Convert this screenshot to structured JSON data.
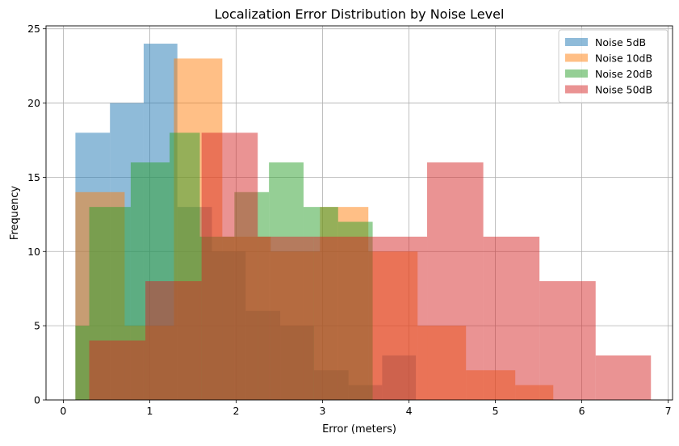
{
  "chart_data": {
    "type": "histogram",
    "title": "Localization Error Distribution by Noise Level",
    "xlabel": "Error (meters)",
    "ylabel": "Frequency",
    "xlim": [
      -0.2,
      7.05
    ],
    "ylim": [
      0,
      25.2
    ],
    "xticks": [
      0,
      1,
      2,
      3,
      4,
      5,
      6,
      7
    ],
    "yticks": [
      0,
      5,
      10,
      15,
      20,
      25
    ],
    "grid": true,
    "legend_position": "top-right",
    "alpha": 0.5,
    "series": [
      {
        "name": "Noise 5dB",
        "color": "#1f77b4",
        "bin_edges": [
          0.14,
          0.54,
          0.93,
          1.32,
          1.72,
          2.11,
          2.51,
          2.9,
          3.3,
          3.69,
          4.08
        ],
        "counts": [
          18,
          20,
          24,
          13,
          10,
          6,
          5,
          2,
          1,
          3
        ]
      },
      {
        "name": "Noise 10dB",
        "color": "#ff7f0e",
        "bin_edges": [
          0.14,
          0.71,
          1.28,
          1.84,
          2.4,
          2.97,
          3.53,
          4.1,
          4.66,
          5.23,
          5.67
        ],
        "counts": [
          14,
          5,
          23,
          11,
          10,
          13,
          10,
          5,
          2,
          1
        ]
      },
      {
        "name": "Noise 20dB",
        "color": "#2ca02c",
        "bin_edges": [
          0.14,
          0.3,
          0.78,
          1.23,
          1.58,
          1.98,
          2.38,
          2.78,
          3.18,
          3.58,
          4.08
        ],
        "counts": [
          5,
          13,
          16,
          18,
          11,
          14,
          16,
          13,
          12,
          0
        ]
      },
      {
        "name": "Noise 50dB",
        "color": "#d62728",
        "bin_edges": [
          0.3,
          0.95,
          1.6,
          2.25,
          2.9,
          3.56,
          4.21,
          4.86,
          5.51,
          6.16,
          6.8
        ],
        "counts": [
          4,
          8,
          18,
          11,
          11,
          11,
          16,
          11,
          8,
          3
        ]
      }
    ]
  }
}
